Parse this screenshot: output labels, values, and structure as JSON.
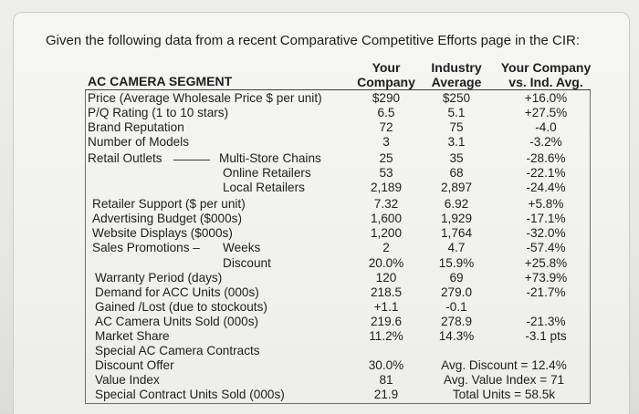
{
  "intro": "Given the following data from a recent Comparative Competitive Efforts page in the CIR:",
  "header": {
    "segment": "AC CAMERA SEGMENT",
    "col1": [
      "Your",
      "Company"
    ],
    "col2": [
      "Industry",
      "Average"
    ],
    "col3": [
      "Your Company",
      "vs. Ind. Avg."
    ]
  },
  "rows": [
    {
      "label": "Price (Average Wholesale Price $ per unit)",
      "c1": "$290",
      "c2": "$250",
      "c3": "+16.0%"
    },
    {
      "label": "P/Q Rating (1 to 10 stars)",
      "c1": "6.5",
      "c2": "5.1",
      "c3": "+27.5%"
    },
    {
      "label": "Brand Reputation",
      "c1": "72",
      "c2": "75",
      "c3": "-4.0"
    },
    {
      "label": "Number of Models",
      "c1": "3",
      "c2": "3.1",
      "c3": "-3.2%"
    },
    {
      "label": "Retail Outlets",
      "sub": "Multi-Store Chains",
      "c1": "25",
      "c2": "35",
      "c3": "-28.6%"
    },
    {
      "label": "",
      "sub": "Online Retailers",
      "c1": "53",
      "c2": "68",
      "c3": "-22.1%"
    },
    {
      "label": "",
      "sub": "Local Retailers",
      "c1": "2,189",
      "c2": "2,897",
      "c3": "-24.4%"
    },
    {
      "label": "Retailer Support ($ per unit)",
      "c1": "7.32",
      "c2": "6.92",
      "c3": "+5.8%"
    },
    {
      "label": "Advertising Budget ($000s)",
      "c1": "1,600",
      "c2": "1,929",
      "c3": "-17.1%"
    },
    {
      "label": "Website Displays ($000s)",
      "c1": "1,200",
      "c2": "1,764",
      "c3": "-32.0%"
    },
    {
      "label": "Sales Promotions –",
      "sub": "Weeks",
      "c1": "2",
      "c2": "4.7",
      "c3": "-57.4%"
    },
    {
      "label": "",
      "sub": "Discount",
      "c1": "20.0%",
      "c2": "15.9%",
      "c3": "+25.8%"
    },
    {
      "label": "Warranty Period (days)",
      "c1": "120",
      "c2": "69",
      "c3": "+73.9%"
    },
    {
      "label": "Demand for ACC Units (000s)",
      "c1": "218.5",
      "c2": "279.0",
      "c3": "-21.7%"
    },
    {
      "label": "Gained /Lost (due to stockouts)",
      "c1": "+1.1",
      "c2": "-0.1",
      "c3": ""
    },
    {
      "label": "AC Camera Units Sold (000s)",
      "c1": "219.6",
      "c2": "278.9",
      "c3": "-21.3%"
    },
    {
      "label": "Market Share",
      "c1": "11.2%",
      "c2": "14.3%",
      "c3": "-3.1 pts"
    },
    {
      "label": "Special AC Camera Contracts",
      "c1": "",
      "c2": "",
      "c3": ""
    },
    {
      "label": "Discount Offer",
      "c1": "30.0%",
      "c2": "Avg. Discount = 12.4%",
      "c3": ""
    },
    {
      "label": "Value Index",
      "c1": "81",
      "c2": "Avg. Value Index = 71",
      "c3": ""
    },
    {
      "label": "Special Contract Units Sold (000s)",
      "c1": "21.9",
      "c2": "Total Units = 58.5k",
      "c3": ""
    }
  ]
}
